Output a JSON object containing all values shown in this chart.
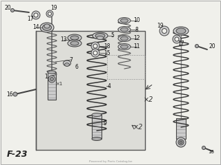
{
  "background_color": "#f0f0eb",
  "diagram_label": "F-23",
  "watermark": "Powered by Parts Catalog.be",
  "fg": "#333333",
  "part_color": "#aaaaaa",
  "part_edge": "#444444",
  "spring_color": "#555555",
  "panel_fc": "#ddddd8",
  "panel_ec": "#555555"
}
